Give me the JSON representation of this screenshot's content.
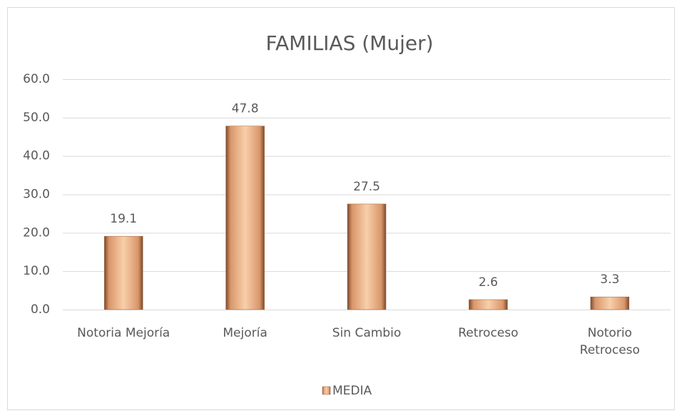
{
  "chart_data": {
    "type": "bar",
    "title": "FAMILIAS (Mujer)",
    "categories": [
      "Notoria Mejoría",
      "Mejoría",
      "Sin Cambio",
      "Retroceso",
      "Notorio Retroceso"
    ],
    "series": [
      {
        "name": "MEDIA",
        "color": "#f4b183",
        "values": [
          19.1,
          47.8,
          27.5,
          2.6,
          3.3
        ]
      }
    ],
    "ylim": [
      0,
      60
    ],
    "yticks": [
      {
        "value": 0,
        "label": "0.0"
      },
      {
        "value": 10,
        "label": "10.0"
      },
      {
        "value": 20,
        "label": "20.0"
      },
      {
        "value": 30,
        "label": "30.0"
      },
      {
        "value": 40,
        "label": "40.0"
      },
      {
        "value": 50,
        "label": "50.0"
      },
      {
        "value": 60,
        "label": "60.0"
      }
    ],
    "grid": true,
    "legend": "bottom"
  }
}
